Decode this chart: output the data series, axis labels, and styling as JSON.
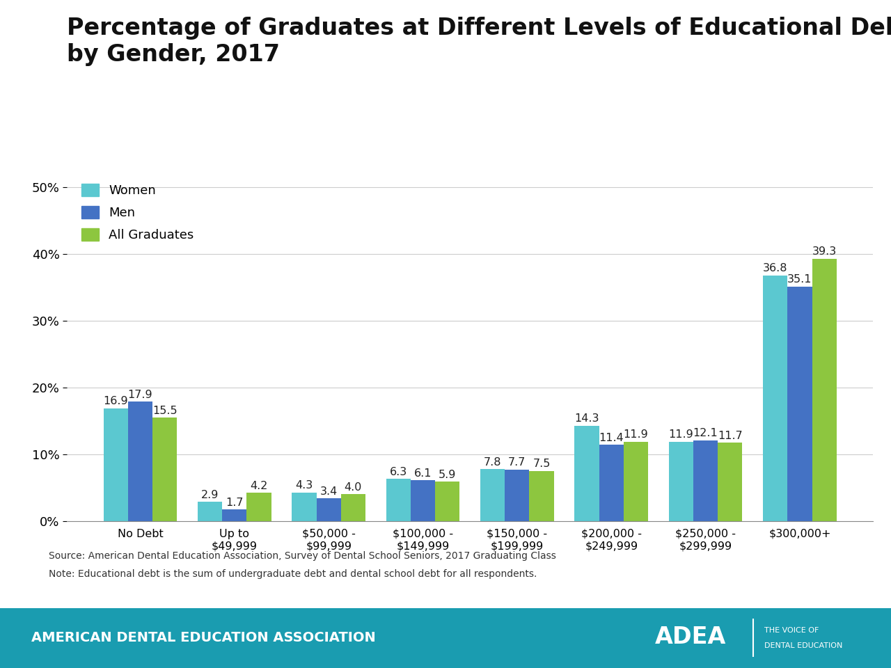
{
  "title_line1": "Percentage of Graduates at Different Levels of Educational Debt",
  "title_line2": "by Gender, 2017",
  "categories": [
    "No Debt",
    "Up to\n$49,999",
    "$50,000 -\n$99,999",
    "$100,000 -\n$149,999",
    "$150,000 -\n$199,999",
    "$200,000 -\n$249,999",
    "$250,000 -\n$299,999",
    "$300,000+"
  ],
  "women": [
    16.9,
    2.9,
    4.3,
    6.3,
    7.8,
    14.3,
    11.9,
    36.8
  ],
  "men": [
    17.9,
    1.7,
    3.4,
    6.1,
    7.7,
    11.4,
    12.1,
    35.1
  ],
  "all_graduates": [
    15.5,
    4.2,
    4.0,
    5.9,
    7.5,
    11.9,
    11.7,
    39.3
  ],
  "color_women": "#5BC8D0",
  "color_men": "#4472C4",
  "color_all": "#8DC63F",
  "ylim": [
    0,
    52
  ],
  "yticks": [
    0,
    10,
    20,
    30,
    40,
    50
  ],
  "ytick_labels": [
    "0%",
    "10%",
    "20%",
    "30%",
    "40%",
    "50%"
  ],
  "source_text": "Source: American Dental Education Association, Survey of Dental School Seniors, 2017 Graduating Class",
  "note_text": "Note: Educational debt is the sum of undergraduate debt and dental school debt for all respondents.",
  "footer_text": "AMERICAN DENTAL EDUCATION ASSOCIATION",
  "footer_bg": "#1A9CB0",
  "legend_labels": [
    "Women",
    "Men",
    "All Graduates"
  ],
  "title_fontsize": 24,
  "label_fontsize": 11.5,
  "tick_fontsize": 13,
  "bar_label_fontsize": 11.5
}
